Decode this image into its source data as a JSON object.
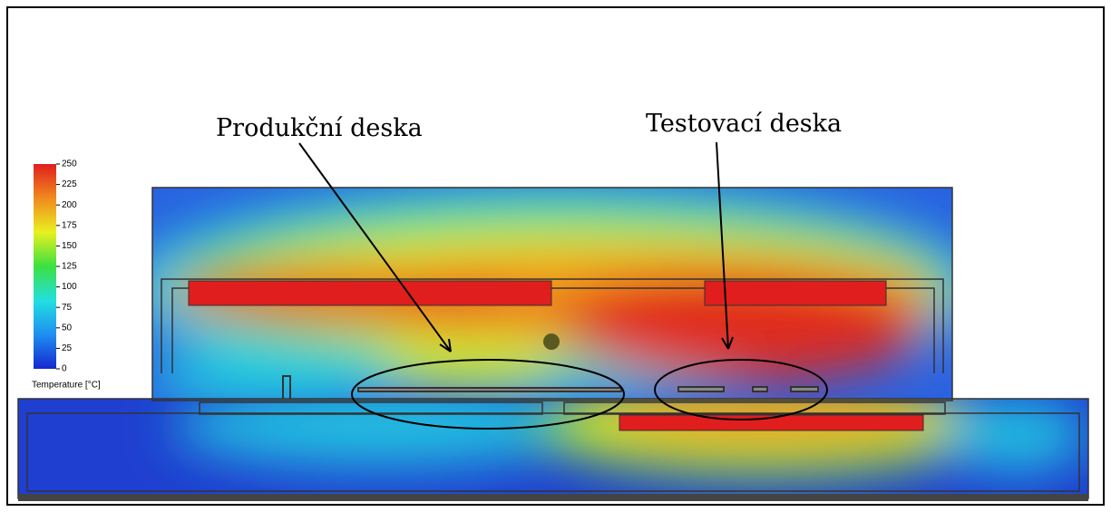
{
  "annotations": [
    {
      "label": "Produkční deska"
    },
    {
      "label": "Testovací deska"
    }
  ],
  "colorbar": {
    "title": "Temperature [°C]",
    "lim": [
      0,
      250
    ],
    "ticks": [
      0,
      25,
      50,
      75,
      100,
      125,
      150,
      175,
      200,
      225,
      250
    ],
    "colors": [
      "#1428d0",
      "#1e8ef0",
      "#22e0e0",
      "#3ce040",
      "#e8f020",
      "#f08a1e",
      "#e01e1e"
    ]
  }
}
